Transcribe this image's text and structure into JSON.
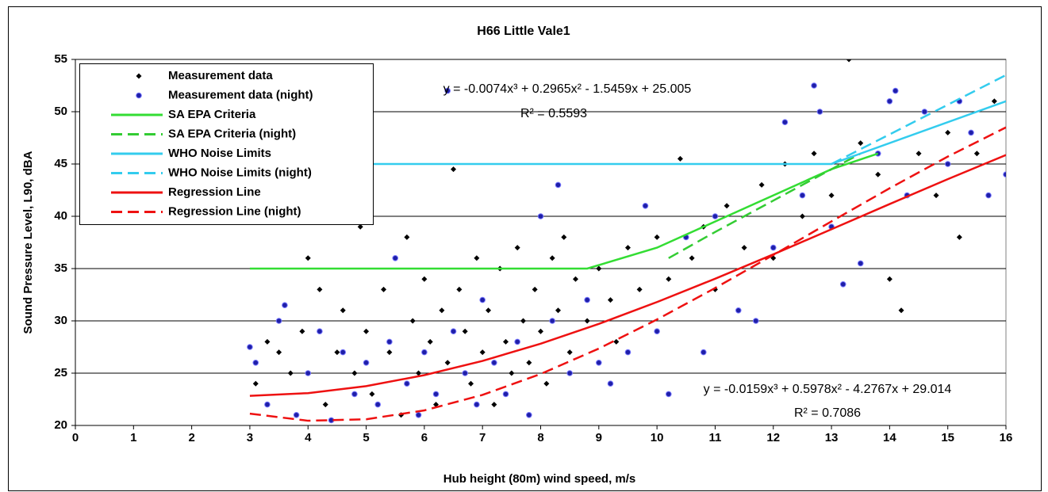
{
  "chart_data": {
    "type": "scatter",
    "title": "H66 Little Vale1",
    "x_label": "Hub height (80m) wind speed, m/s",
    "y_label": "Sound Pressure Level, L90, dBA",
    "xlim": [
      0,
      16
    ],
    "ylim": [
      20,
      55
    ],
    "xticks": [
      0,
      1,
      2,
      3,
      4,
      5,
      6,
      7,
      8,
      9,
      10,
      11,
      12,
      13,
      14,
      15,
      16
    ],
    "yticks": [
      20,
      25,
      30,
      35,
      40,
      45,
      50,
      55
    ],
    "grid": true,
    "legend": "upper left",
    "annotations": [
      "y = -0.0074x³ + 0.2965x² - 1.5459x + 25.005",
      "R² = 0.5593",
      "y = -0.0159x³ + 0.5978x² - 4.2767x + 29.014",
      "R² = 0.7086"
    ],
    "series": [
      {
        "name": "Measurement data",
        "kind": "scatter",
        "marker": "diamond",
        "color": "#000000",
        "x": [
          3.1,
          3.3,
          3.5,
          3.7,
          3.9,
          4.0,
          4.2,
          4.3,
          4.5,
          4.6,
          4.8,
          4.9,
          5.0,
          5.1,
          5.3,
          5.4,
          5.6,
          5.7,
          5.8,
          5.9,
          6.0,
          6.1,
          6.2,
          6.3,
          6.4,
          6.5,
          6.6,
          6.7,
          6.8,
          6.9,
          7.0,
          7.1,
          7.2,
          7.3,
          7.4,
          7.5,
          7.6,
          7.7,
          7.8,
          7.9,
          8.0,
          8.1,
          8.2,
          8.3,
          8.4,
          8.5,
          8.6,
          8.8,
          9.0,
          9.2,
          9.3,
          9.5,
          9.7,
          10.0,
          10.2,
          10.4,
          10.6,
          10.8,
          11.0,
          11.2,
          11.5,
          11.8,
          12.0,
          12.2,
          12.5,
          12.7,
          13.0,
          13.3,
          13.5,
          13.8,
          14.0,
          14.2,
          14.5,
          14.8,
          15.0,
          15.2,
          15.5,
          15.8,
          16.0
        ],
        "values": [
          24,
          28,
          27,
          25,
          29,
          36,
          33,
          22,
          27,
          31,
          25,
          39,
          29,
          23,
          33,
          27,
          21,
          38,
          30,
          25,
          34,
          28,
          22,
          31,
          26,
          44.5,
          33,
          29,
          24,
          36,
          27,
          31,
          22,
          35,
          28,
          25,
          37,
          30,
          26,
          33,
          29,
          24,
          36,
          31,
          38,
          27,
          34,
          30,
          35,
          32,
          28,
          37,
          33,
          38,
          34,
          45.5,
          36,
          39,
          33,
          41,
          37,
          43,
          36,
          45,
          40,
          46,
          42,
          55,
          47,
          44,
          34,
          31,
          46,
          42,
          48,
          38,
          46,
          51,
          44
        ]
      },
      {
        "name": "Measurement data (night)",
        "kind": "scatter",
        "marker": "circle",
        "color": "#1f1fa8",
        "x": [
          3.0,
          3.1,
          3.3,
          3.5,
          3.6,
          3.8,
          4.0,
          4.2,
          4.4,
          4.6,
          4.8,
          5.0,
          5.2,
          5.4,
          5.5,
          5.7,
          5.9,
          6.0,
          6.2,
          6.4,
          6.5,
          6.7,
          6.9,
          7.0,
          7.2,
          7.4,
          7.6,
          7.8,
          8.0,
          8.2,
          8.3,
          8.5,
          8.8,
          9.0,
          9.2,
          9.5,
          9.8,
          10.0,
          10.2,
          10.5,
          10.8,
          11.0,
          11.4,
          11.7,
          12.0,
          12.2,
          12.5,
          12.7,
          12.8,
          13.0,
          13.2,
          13.5,
          13.8,
          14.0,
          14.1,
          14.3,
          14.6,
          15.0,
          15.2,
          15.4,
          15.7,
          16.0
        ],
        "values": [
          27.5,
          26,
          22,
          30,
          31.5,
          21,
          25,
          29,
          20.5,
          27,
          23,
          26,
          22,
          28,
          36,
          24,
          21,
          27,
          23,
          52,
          29,
          25,
          22,
          32,
          26,
          23,
          28,
          21,
          40,
          30,
          43,
          25,
          32,
          26,
          24,
          27,
          41,
          29,
          23,
          38,
          27,
          40,
          31,
          30,
          37,
          49,
          42,
          52.5,
          50,
          39,
          33.5,
          35.5,
          46,
          51,
          52,
          42,
          50,
          45,
          51,
          48,
          42,
          44
        ]
      },
      {
        "name": "SA EPA Criteria",
        "kind": "line",
        "dash": false,
        "color": "#33dd33",
        "x": [
          3,
          8.8,
          10,
          11,
          12,
          13,
          13.8
        ],
        "values": [
          35,
          35,
          37,
          39.5,
          42,
          44.5,
          46
        ]
      },
      {
        "name": "SA EPA Criteria (night)",
        "kind": "line",
        "dash": true,
        "color": "#33cc33",
        "x": [
          10.2,
          11,
          12,
          13,
          13.5
        ],
        "values": [
          36,
          38.5,
          41.5,
          44.5,
          46
        ]
      },
      {
        "name": "WHO Noise Limits",
        "kind": "line",
        "dash": false,
        "color": "#33ccee",
        "x": [
          3,
          13,
          16
        ],
        "values": [
          45,
          45,
          51
        ]
      },
      {
        "name": "WHO Noise Limits (night)",
        "kind": "line",
        "dash": true,
        "color": "#33ccee",
        "x": [
          13,
          16
        ],
        "values": [
          45,
          53.5
        ]
      },
      {
        "name": "Regression Line",
        "kind": "line",
        "dash": false,
        "color": "#ee1111",
        "x": [
          3,
          4,
          5,
          6,
          7,
          8,
          9,
          10,
          11,
          12,
          13,
          14,
          15,
          16
        ],
        "values": [
          22.83,
          23.09,
          23.76,
          24.81,
          26.17,
          27.82,
          29.71,
          31.8,
          34.03,
          36.36,
          38.76,
          41.17,
          43.55,
          45.86
        ]
      },
      {
        "name": "Regression Line (night)",
        "kind": "line",
        "dash": true,
        "color": "#ee1111",
        "x": [
          3,
          4,
          5,
          6,
          7,
          8,
          9,
          10,
          11,
          12,
          13,
          14,
          15,
          16
        ],
        "values": [
          21.13,
          20.45,
          20.59,
          21.44,
          22.92,
          24.92,
          27.35,
          30.13,
          33.14,
          36.3,
          39.51,
          42.68,
          45.71,
          48.5
        ]
      }
    ]
  }
}
